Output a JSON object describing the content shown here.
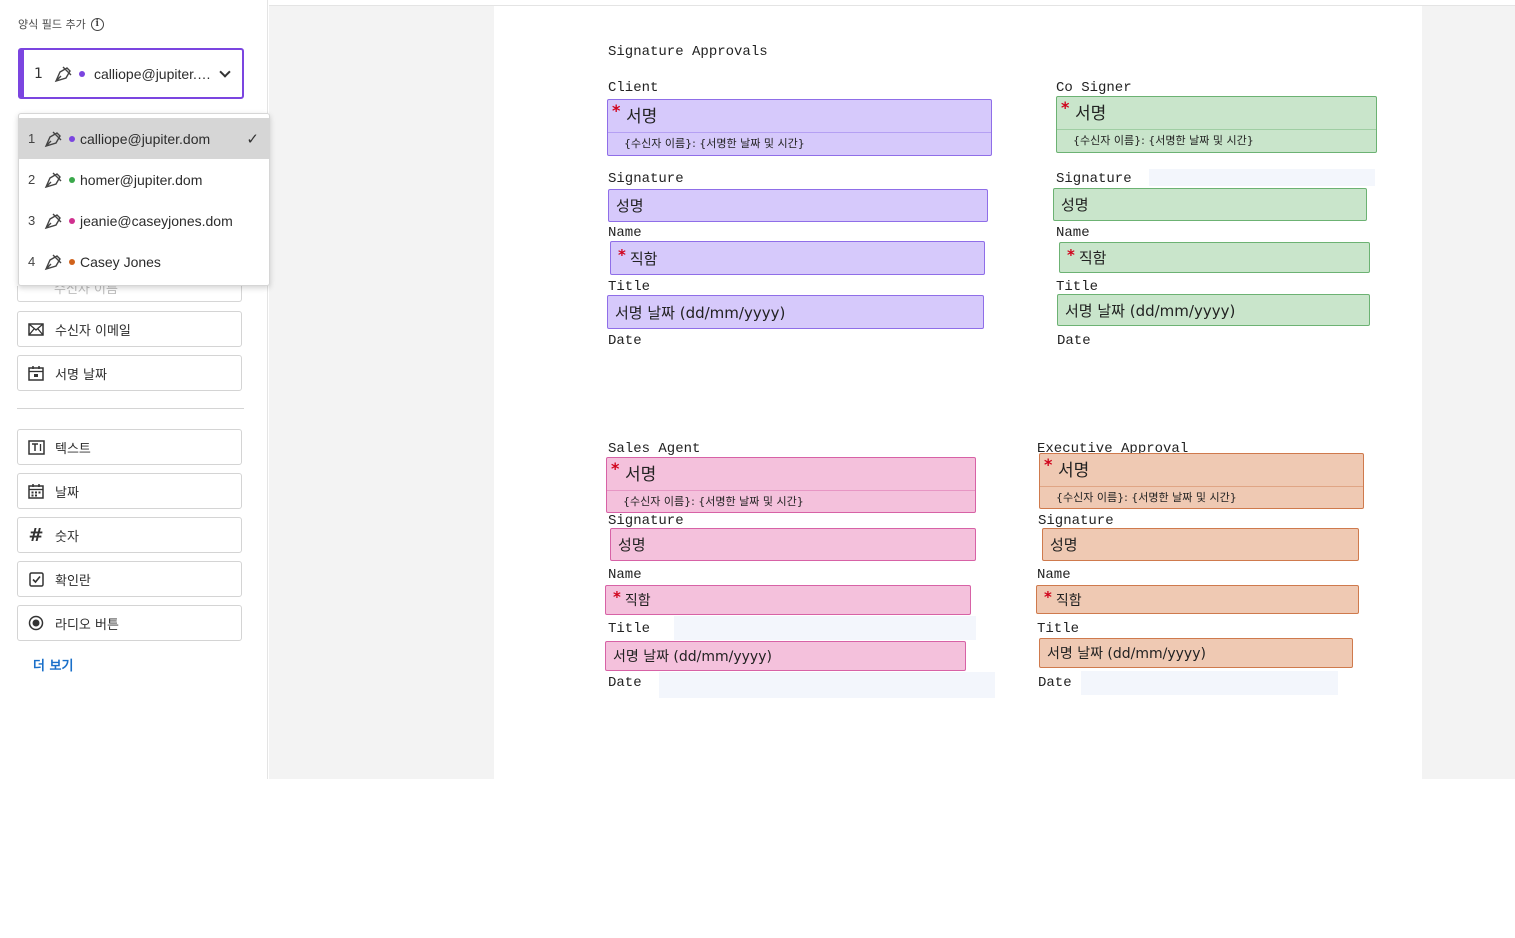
{
  "sidebar": {
    "heading": "양식 필드 추가",
    "selected_recipient": {
      "number": "1",
      "email": "calliope@jupiter.dom",
      "color": "#7b45e0"
    },
    "recipients": [
      {
        "number": "1",
        "email": "calliope@jupiter.dom",
        "color": "#7b45e0",
        "selected": true
      },
      {
        "number": "2",
        "email": "homer@jupiter.dom",
        "color": "#3aa84b",
        "selected": false
      },
      {
        "number": "3",
        "email": "jeanie@caseyjones.dom",
        "color": "#d0308f",
        "selected": false
      },
      {
        "number": "4",
        "email": "Casey Jones",
        "color": "#d0621b",
        "selected": false
      }
    ],
    "partial_item": "수신자 이름",
    "fields": [
      {
        "label": "수신자 이메일",
        "icon": "envelope-icon"
      },
      {
        "label": "서명 날짜",
        "icon": "calendar-icon"
      }
    ],
    "other_fields": [
      {
        "label": "텍스트",
        "icon": "text-icon"
      },
      {
        "label": "날짜",
        "icon": "calendar-icon"
      },
      {
        "label": "숫자",
        "icon": "hash-icon"
      },
      {
        "label": "확인란",
        "icon": "checkbox-icon"
      },
      {
        "label": "라디오 버튼",
        "icon": "radio-icon"
      }
    ],
    "more_label": "더 보기"
  },
  "document": {
    "title": "Signature Approvals",
    "labels": {
      "client": "Client",
      "co_signer": "Co Signer",
      "sales_agent": "Sales Agent",
      "executive": "Executive Approval",
      "signature": "Signature",
      "name": "Name",
      "title": "Title",
      "date": "Date"
    },
    "fields": {
      "signature_main": "서명",
      "signature_sub": "{수신자 이름}: {서명한 날짜 및 시간}",
      "full_name": "성명",
      "job_title": "직함",
      "sign_date": "서명 날짜 (dd/mm/yyyy)",
      "required_mark": "*"
    }
  }
}
